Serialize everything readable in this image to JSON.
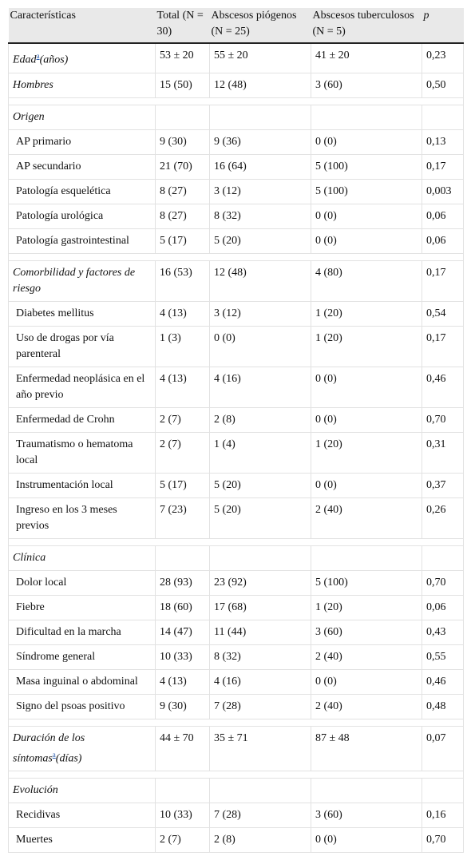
{
  "header": [
    "Características",
    "Total (N = 30)",
    "Abscesos piógenos (N = 25)",
    "Abscesos tuberculosos (N = 5)",
    "p"
  ],
  "sections": [
    {
      "rows": [
        {
          "label": "Edad",
          "note": "a",
          "label_end": "(años)",
          "italic": true,
          "cells": [
            "53 ± 20",
            "55 ± 20",
            "41 ± 20",
            "0,23"
          ]
        },
        {
          "label": "Hombres",
          "italic": true,
          "cells": [
            "15 (50)",
            "12 (48)",
            "3 (60)",
            "0,50"
          ]
        }
      ]
    },
    {
      "rows": [
        {
          "label": "Origen",
          "italic": true
        },
        {
          "label": "AP primario",
          "cells": [
            "9 (30)",
            "9 (36)",
            "0 (0)",
            "0,13"
          ]
        },
        {
          "label": "AP secundario",
          "cells": [
            "21 (70)",
            "16 (64)",
            "5 (100)",
            "0,17"
          ]
        },
        {
          "label": "Patología esquelética",
          "cells": [
            "8 (27)",
            "3 (12)",
            "5 (100)",
            "0,003"
          ]
        },
        {
          "label": "Patología urológica",
          "cells": [
            "8 (27)",
            "8 (32)",
            "0 (0)",
            "0,06"
          ]
        },
        {
          "label": "Patología gastrointestinal",
          "cells": [
            "5 (17)",
            "5 (20)",
            "0 (0)",
            "0,06"
          ]
        }
      ]
    },
    {
      "rows": [
        {
          "label": "Comorbilidad y factores de riesgo",
          "italic": true,
          "cells": [
            "16 (53)",
            "12 (48)",
            "4 (80)",
            "0,17"
          ]
        },
        {
          "label": "Diabetes mellitus",
          "cells": [
            "4 (13)",
            "3 (12)",
            "1 (20)",
            "0,54"
          ]
        },
        {
          "label": "Uso de drogas por vía parenteral",
          "cells": [
            "1 (3)",
            "0 (0)",
            "1 (20)",
            "0,17"
          ]
        },
        {
          "label": "Enfermedad neoplásica en el año previo",
          "cells": [
            "4 (13)",
            "4 (16)",
            "0 (0)",
            "0,46"
          ]
        },
        {
          "label": "Enfermedad de Crohn",
          "cells": [
            "2 (7)",
            "2 (8)",
            "0 (0)",
            "0,70"
          ]
        },
        {
          "label": "Traumatismo o hematoma local",
          "cells": [
            "2 (7)",
            "1 (4)",
            "1 (20)",
            "0,31"
          ]
        },
        {
          "label": "Instrumentación local",
          "cells": [
            "5 (17)",
            "5 (20)",
            "0 (0)",
            "0,37"
          ]
        },
        {
          "label": "Ingreso en los 3 meses previos",
          "cells": [
            "7 (23)",
            "5 (20)",
            "2 (40)",
            "0,26"
          ]
        }
      ]
    },
    {
      "rows": [
        {
          "label": "Clínica",
          "italic": true
        },
        {
          "label": "Dolor local",
          "cells": [
            "28 (93)",
            "23 (92)",
            "5 (100)",
            "0,70"
          ]
        },
        {
          "label": "Fiebre",
          "cells": [
            "18 (60)",
            "17 (68)",
            "1 (20)",
            "0,06"
          ]
        },
        {
          "label": "Dificultad en la marcha",
          "cells": [
            "14 (47)",
            "11 (44)",
            "3 (60)",
            "0,43"
          ]
        },
        {
          "label": "Síndrome general",
          "cells": [
            "10 (33)",
            "8 (32)",
            "2 (40)",
            "0,55"
          ]
        },
        {
          "label": "Masa inguinal o abdominal",
          "cells": [
            "4 (13)",
            "4 (16)",
            "0 (0)",
            "0,46"
          ]
        },
        {
          "label": "Signo del psoas positivo",
          "cells": [
            "9 (30)",
            "7 (28)",
            "2 (40)",
            "0,48"
          ]
        }
      ]
    },
    {
      "rows": [
        {
          "label": "Duración de los síntomas",
          "note": "a",
          "label_end": "(días)",
          "italic": true,
          "cells": [
            "44 ± 70",
            "35 ± 71",
            "87 ± 48",
            "0,07"
          ]
        }
      ]
    },
    {
      "rows": [
        {
          "label": "Evolución",
          "italic": true
        },
        {
          "label": "Recidivas",
          "cells": [
            "10 (33)",
            "7 (28)",
            "3 (60)",
            "0,16"
          ]
        },
        {
          "label": "Muertes",
          "cells": [
            "2 (7)",
            "2 (8)",
            "0 (0)",
            "0,70"
          ]
        }
      ]
    }
  ]
}
